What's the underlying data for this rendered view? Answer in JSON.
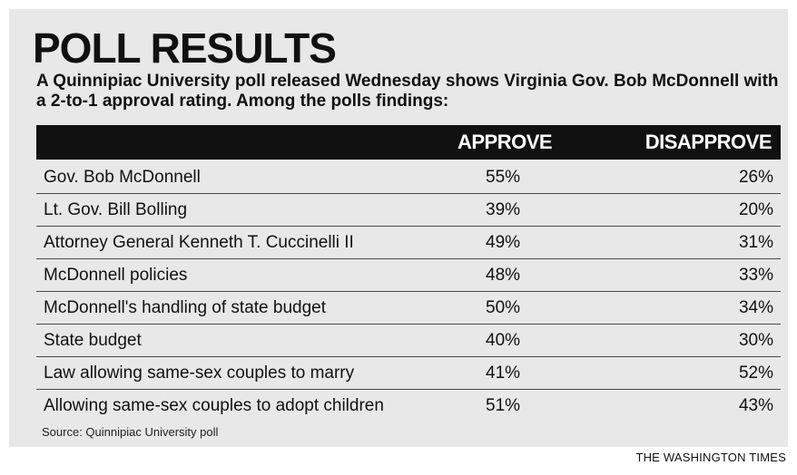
{
  "chart_data": {
    "type": "table",
    "title": "POLL RESULTS",
    "subtitle": "A Quinnipiac University poll released Wednesday shows Virginia Gov. Bob McDonnell with a 2-to-1 approval rating. Among the polls findings:",
    "columns": [
      "APPROVE",
      "DISAPPROVE"
    ],
    "rows": [
      {
        "label": "Gov. Bob McDonnell",
        "approve": "55%",
        "disapprove": "26%"
      },
      {
        "label": "Lt. Gov. Bill Bolling",
        "approve": "39%",
        "disapprove": "20%"
      },
      {
        "label": "Attorney General Kenneth T. Cuccinelli II",
        "approve": "49%",
        "disapprove": "31%"
      },
      {
        "label": "McDonnell policies",
        "approve": "48%",
        "disapprove": "33%"
      },
      {
        "label": "McDonnell's handling of state budget",
        "approve": "50%",
        "disapprove": "34%"
      },
      {
        "label": "State budget",
        "approve": "40%",
        "disapprove": "30%"
      },
      {
        "label": "Law allowing same-sex couples to marry",
        "approve": "41%",
        "disapprove": "52%"
      },
      {
        "label": "Allowing same-sex couples to adopt children",
        "approve": "51%",
        "disapprove": "43%"
      }
    ],
    "source": "Source: Quinnipiac University poll"
  },
  "credit": "THE WASHINGTON TIMES",
  "colors": {
    "panel_background": "#e8e8e8",
    "header_bar": "#111111",
    "header_text": "#ffffff",
    "text": "#111111"
  }
}
